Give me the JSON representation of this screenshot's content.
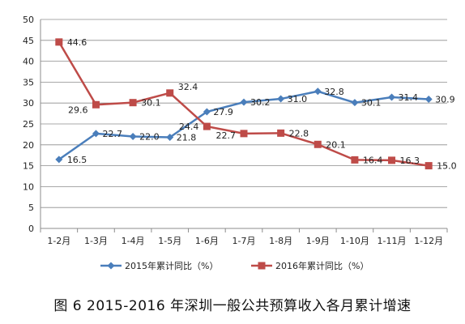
{
  "caption": "图 6   2015-2016 年深圳一般公共预算收入各月累计增速",
  "chart_data": {
    "type": "line",
    "categories": [
      "1-2月",
      "1-3月",
      "1-4月",
      "1-5月",
      "1-6月",
      "1-7月",
      "1-8月",
      "1-9月",
      "1-10月",
      "1-11月",
      "1-12月"
    ],
    "ylim": [
      0,
      50
    ],
    "yticks": [
      "0",
      "5",
      "10",
      "15",
      "20",
      "25",
      "30",
      "35",
      "40",
      "45",
      "50"
    ],
    "grid": true,
    "legend_position": "bottom",
    "series": [
      {
        "name": "2015年累计同比（%）",
        "color": "#4a7ebb",
        "marker": "diamond",
        "values": [
          16.5,
          22.7,
          22.0,
          21.8,
          27.9,
          30.2,
          31.0,
          32.8,
          30.1,
          31.4,
          30.9
        ],
        "labels": [
          "16.5",
          "22.7",
          "22.0",
          "21.8",
          "27.9",
          "30.2",
          "31.0",
          "32.8",
          "30.1",
          "31.4",
          "30.9"
        ]
      },
      {
        "name": "2016年累计同比（%）",
        "color": "#be4b48",
        "marker": "square",
        "values": [
          44.6,
          29.6,
          30.1,
          32.4,
          24.4,
          22.7,
          22.8,
          20.1,
          16.4,
          16.3,
          15.0
        ],
        "labels": [
          "44.6",
          "29.6",
          "30.1",
          "32.4",
          "24.4",
          "22.7",
          "22.8",
          "20.1",
          "16.4",
          "16.3",
          "15.0"
        ]
      }
    ]
  }
}
